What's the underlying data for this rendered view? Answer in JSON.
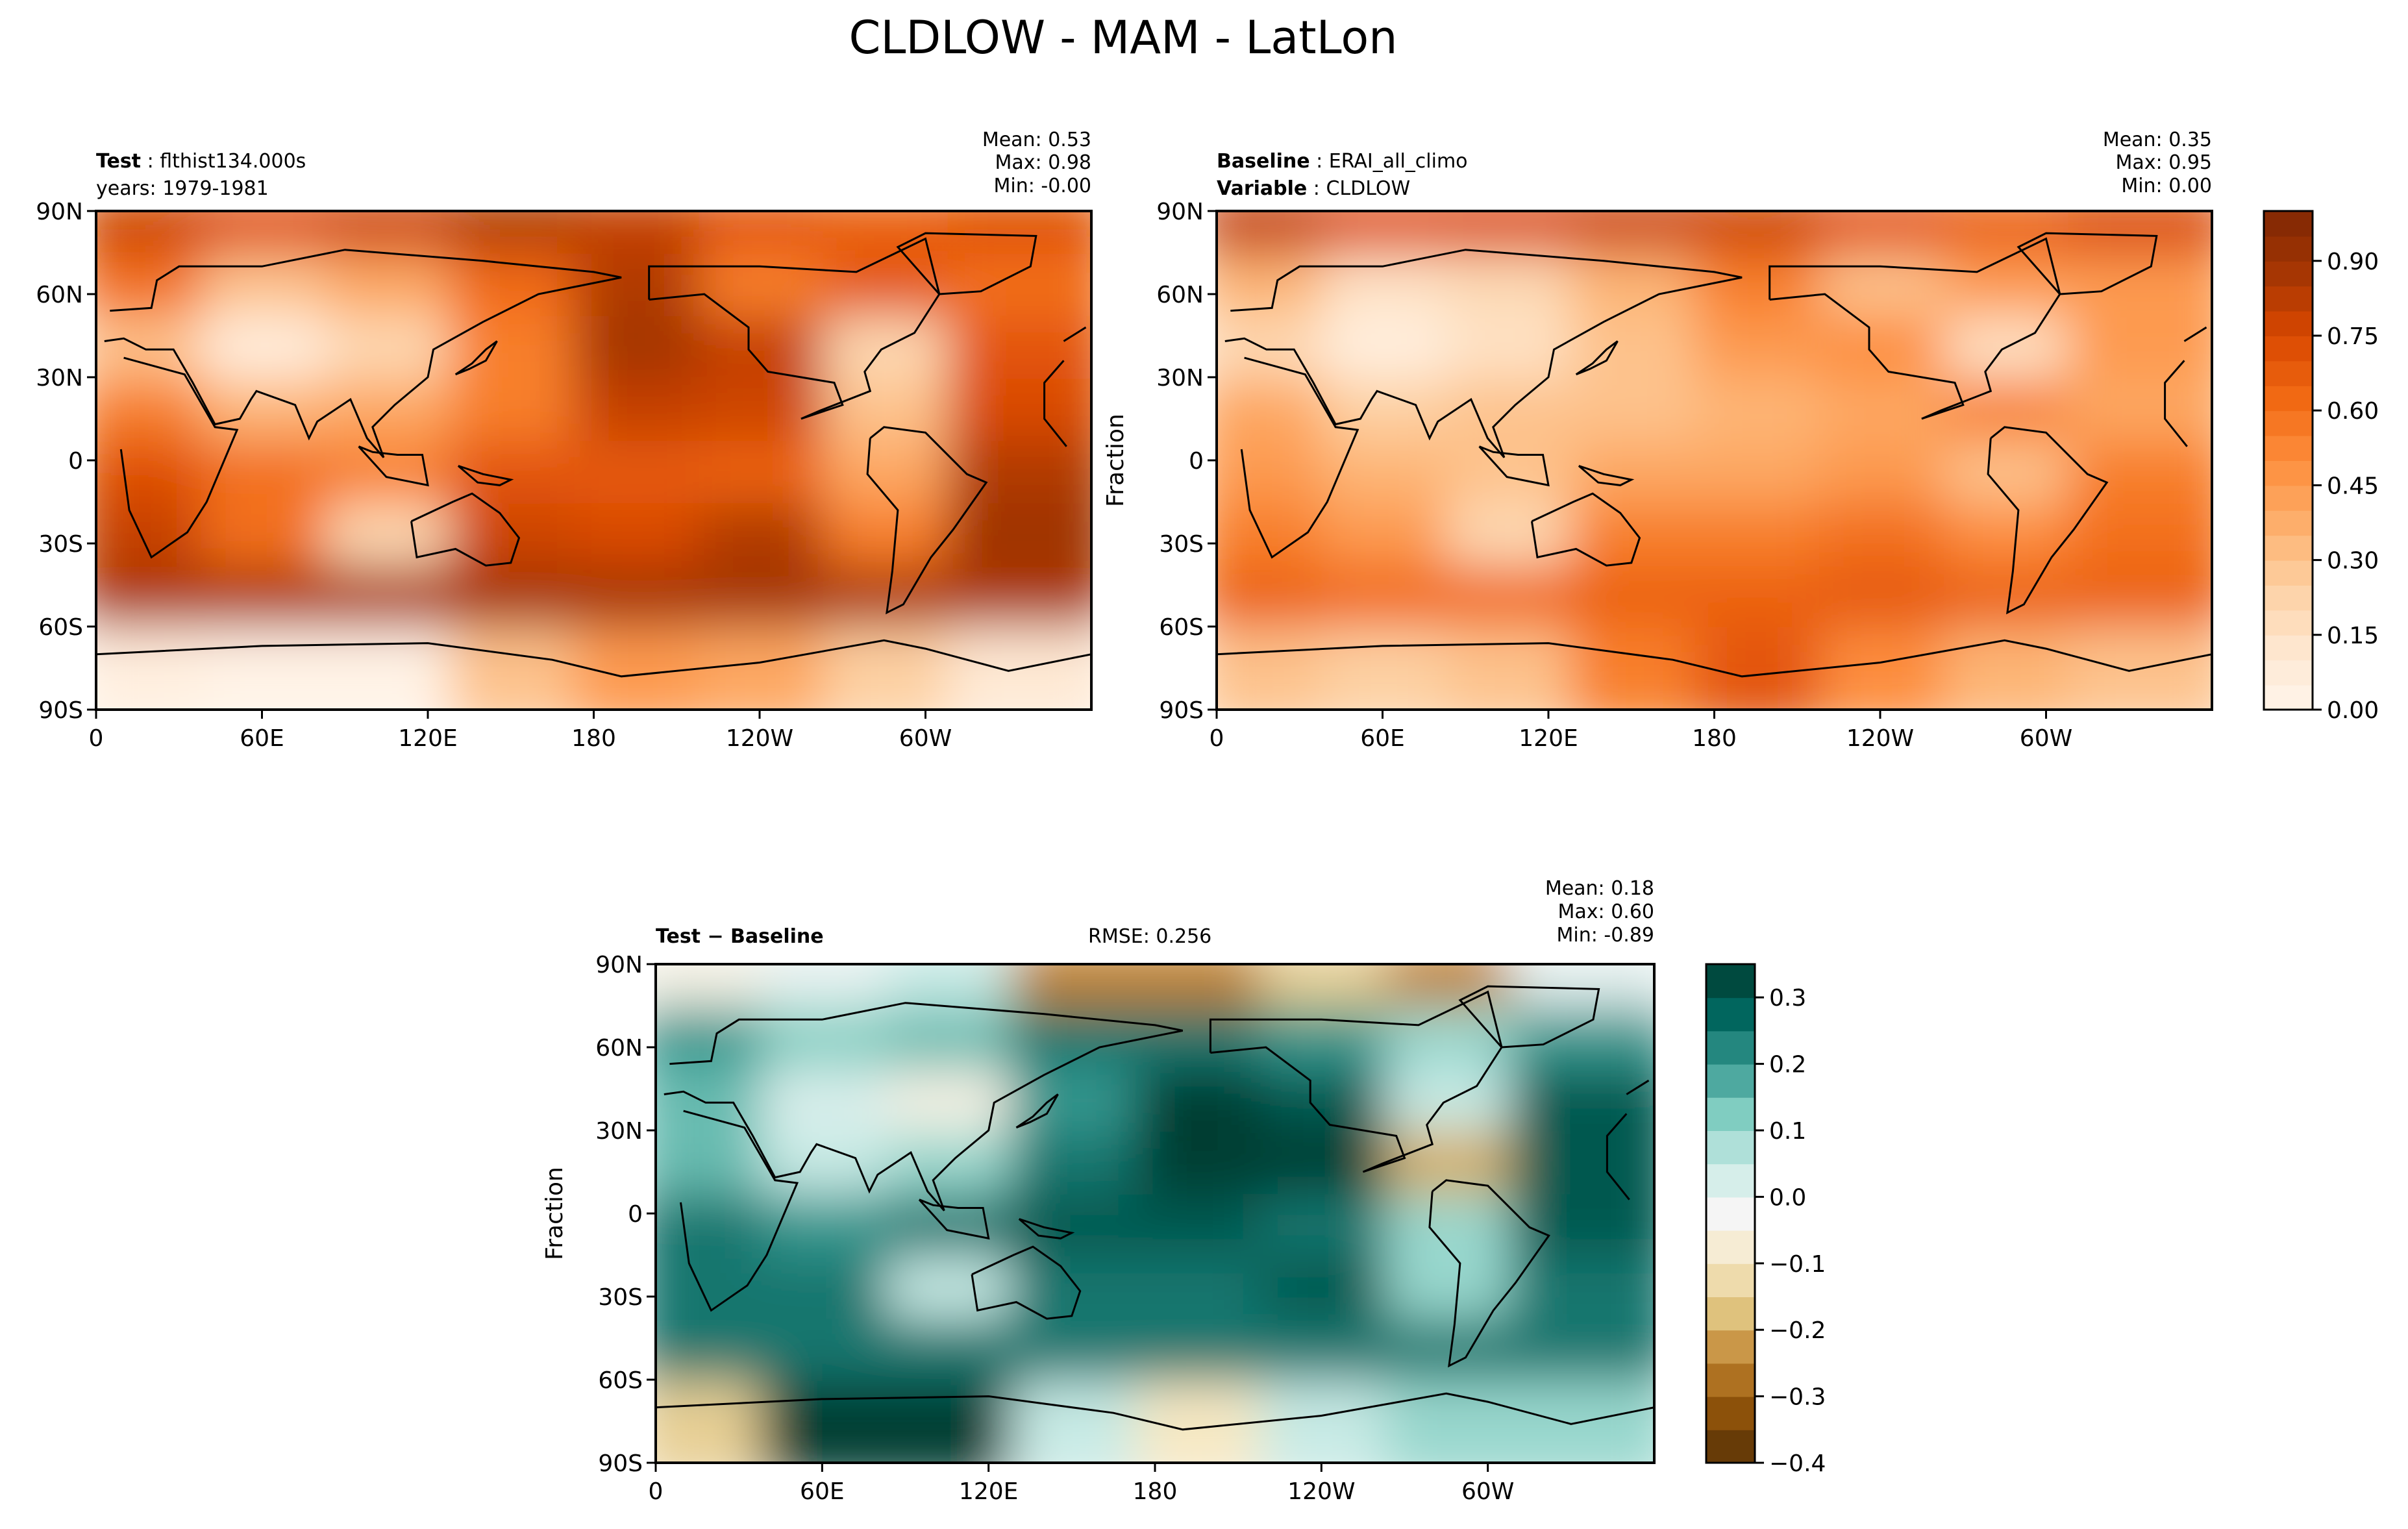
{
  "title": "CLDLOW - MAM - LatLon",
  "colors": {
    "orange_scale": [
      "#fff5eb",
      "#fee6ce",
      "#fdd0a2",
      "#fdae6b",
      "#fd8d3c",
      "#f16913",
      "#d94801",
      "#a63603",
      "#7f2704"
    ],
    "diff_scale": [
      "#543005",
      "#8c510a",
      "#bf812d",
      "#dfc27d",
      "#f6e8c3",
      "#f5f5f5",
      "#c7eae5",
      "#80cdc1",
      "#35978f",
      "#01665e",
      "#003c30"
    ],
    "missing": "#ffffff",
    "coast": "#000000"
  },
  "chart_data": [
    {
      "type": "heatmap",
      "panel": "test",
      "label_bold": "Test",
      "label_value": "flthist134.000s",
      "line2": "years: 1979-1981",
      "stats": {
        "mean": "Mean:  0.53",
        "max": "Max:  0.98",
        "min": "Min: -0.00"
      },
      "ylabel": "",
      "xticks": [
        "0",
        "60E",
        "120E",
        "180",
        "120W",
        "60W"
      ],
      "yticks": [
        "90N",
        "60N",
        "30N",
        "0",
        "30S",
        "60S",
        "90S"
      ],
      "xlim": [
        0,
        360
      ],
      "ylim": [
        -90,
        90
      ],
      "colormap": "Oranges",
      "field": [
        [
          0.78,
          0.72,
          0.78,
          0.85,
          0.8,
          0.7,
          0.66,
          0.72
        ],
        [
          0.6,
          0.3,
          0.4,
          0.62,
          0.85,
          0.55,
          0.7,
          0.6
        ],
        [
          0.3,
          0.05,
          0.2,
          0.55,
          0.88,
          0.8,
          0.2,
          0.7
        ],
        [
          0.55,
          0.35,
          0.4,
          0.55,
          0.8,
          0.78,
          0.3,
          0.75
        ],
        [
          0.72,
          0.6,
          0.55,
          0.7,
          0.68,
          0.65,
          0.4,
          0.85
        ],
        [
          0.8,
          0.6,
          0.2,
          0.78,
          0.75,
          0.85,
          0.55,
          0.9
        ],
        [
          0.86,
          0.86,
          0.86,
          0.88,
          0.88,
          0.88,
          0.86,
          0.86
        ],
        [
          0.05,
          0.02,
          0.02,
          0.3,
          0.45,
          0.4,
          0.25,
          0.1
        ]
      ]
    },
    {
      "type": "heatmap",
      "panel": "baseline",
      "label_bold": "Baseline",
      "label_value": "ERAI_all_climo",
      "line2_bold": "Variable",
      "line2_value": "CLDLOW",
      "stats": {
        "mean": "Mean:  0.35",
        "max": "Max:  0.95",
        "min": "Min:  0.00"
      },
      "ylabel": "Fraction",
      "xticks": [
        "0",
        "60E",
        "120E",
        "180",
        "120W",
        "60W"
      ],
      "yticks": [
        "90N",
        "60N",
        "30N",
        "0",
        "30S",
        "60S",
        "90S"
      ],
      "xlim": [
        0,
        360
      ],
      "ylim": [
        -90,
        90
      ],
      "colormap": "Oranges",
      "colorbar_ticks": [
        "0.00",
        "0.15",
        "0.30",
        "0.45",
        "0.60",
        "0.75",
        "0.90"
      ],
      "colorbar_range": [
        0,
        1.0
      ],
      "field": [
        [
          0.8,
          0.72,
          0.74,
          0.78,
          0.78,
          0.7,
          0.66,
          0.75
        ],
        [
          0.35,
          0.15,
          0.2,
          0.35,
          0.55,
          0.3,
          0.45,
          0.45
        ],
        [
          0.2,
          0.05,
          0.15,
          0.3,
          0.45,
          0.5,
          0.15,
          0.45
        ],
        [
          0.4,
          0.25,
          0.3,
          0.3,
          0.35,
          0.4,
          0.55,
          0.4
        ],
        [
          0.45,
          0.35,
          0.3,
          0.4,
          0.4,
          0.45,
          0.3,
          0.55
        ],
        [
          0.55,
          0.45,
          0.2,
          0.55,
          0.55,
          0.6,
          0.5,
          0.6
        ],
        [
          0.65,
          0.62,
          0.62,
          0.65,
          0.65,
          0.68,
          0.65,
          0.65
        ],
        [
          0.3,
          0.25,
          0.3,
          0.55,
          0.7,
          0.5,
          0.35,
          0.3
        ]
      ]
    },
    {
      "type": "heatmap",
      "panel": "difference",
      "label_bold": "Test − Baseline",
      "rmse": "RMSE: 0.256",
      "stats": {
        "mean": "Mean:  0.18",
        "max": "Max:  0.60",
        "min": "Min: -0.89"
      },
      "ylabel": "Fraction",
      "xticks": [
        "0",
        "60E",
        "120E",
        "180",
        "120W",
        "60W"
      ],
      "yticks": [
        "90N",
        "60N",
        "30N",
        "0",
        "30S",
        "60S",
        "90S"
      ],
      "xlim": [
        0,
        360
      ],
      "ylim": [
        -90,
        90
      ],
      "colormap": "BrBG",
      "colorbar_ticks": [
        "0.3",
        "0.2",
        "0.1",
        "0.0",
        "−0.1",
        "−0.2",
        "−0.3",
        "−0.4"
      ],
      "colorbar_range": [
        -0.4,
        0.35
      ],
      "field": [
        [
          -0.05,
          0.0,
          0.05,
          -0.25,
          -0.25,
          -0.15,
          -0.25,
          0.0
        ],
        [
          0.2,
          0.12,
          0.15,
          0.25,
          0.25,
          0.2,
          0.1,
          0.2
        ],
        [
          0.15,
          0.02,
          -0.05,
          0.2,
          0.4,
          0.3,
          0.05,
          0.3
        ],
        [
          0.15,
          0.05,
          0.1,
          0.25,
          0.4,
          0.4,
          -0.2,
          0.3
        ],
        [
          0.25,
          0.2,
          0.25,
          0.3,
          0.3,
          0.25,
          0.1,
          0.3
        ],
        [
          0.25,
          0.25,
          0.05,
          0.25,
          0.25,
          0.3,
          0.1,
          0.25
        ],
        [
          0.25,
          0.25,
          0.25,
          0.25,
          0.25,
          0.25,
          0.25,
          0.25
        ],
        [
          -0.15,
          0.4,
          0.4,
          0.05,
          -0.1,
          0.05,
          0.1,
          0.1
        ]
      ]
    }
  ]
}
